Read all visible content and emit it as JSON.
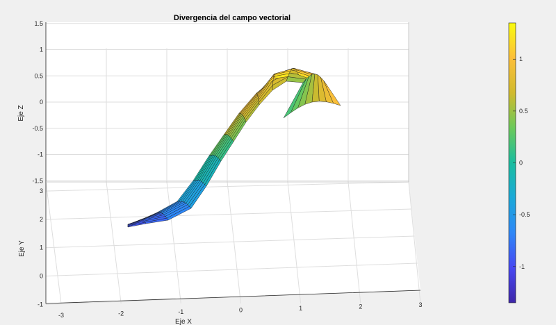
{
  "chart_data": {
    "type": "surface",
    "title": "Divergencia del campo vectorial",
    "xlabel": "Eje X",
    "ylabel": "Eje Y",
    "zlabel": "Eje Z",
    "x_ticks": [
      "-3",
      "-2",
      "-1",
      "0",
      "1",
      "2",
      "3"
    ],
    "y_ticks": [
      "-1",
      "0",
      "1",
      "2",
      "3"
    ],
    "z_ticks": [
      "-1.5",
      "-1",
      "-0.5",
      "0",
      "0.5",
      "1",
      "1.5"
    ],
    "xlim": [
      -3,
      3
    ],
    "ylim": [
      -1,
      3
    ],
    "zlim": [
      -1.5,
      1.5
    ],
    "grid": true,
    "colormap": "parula",
    "colorbar": {
      "ticks": [
        "-1",
        "-0.5",
        "0",
        "0.5",
        "1"
      ],
      "range": [
        -1.35,
        1.35
      ]
    },
    "surface_x": [
      -1.9,
      1.6
    ],
    "surface_y": [
      0.7,
      2.3
    ],
    "surface_z_profile": [
      -0.95,
      -0.9,
      -0.75,
      -0.5,
      -0.2,
      0.15,
      0.5,
      0.85,
      1.1,
      1.25,
      1.3,
      1.15,
      0.95
    ],
    "surface_z_drop": [
      0,
      0.01,
      0.03,
      0.06,
      0.1,
      0.16,
      0.22,
      0.3,
      0.4,
      0.5,
      0.6,
      0.72,
      0.8
    ]
  }
}
